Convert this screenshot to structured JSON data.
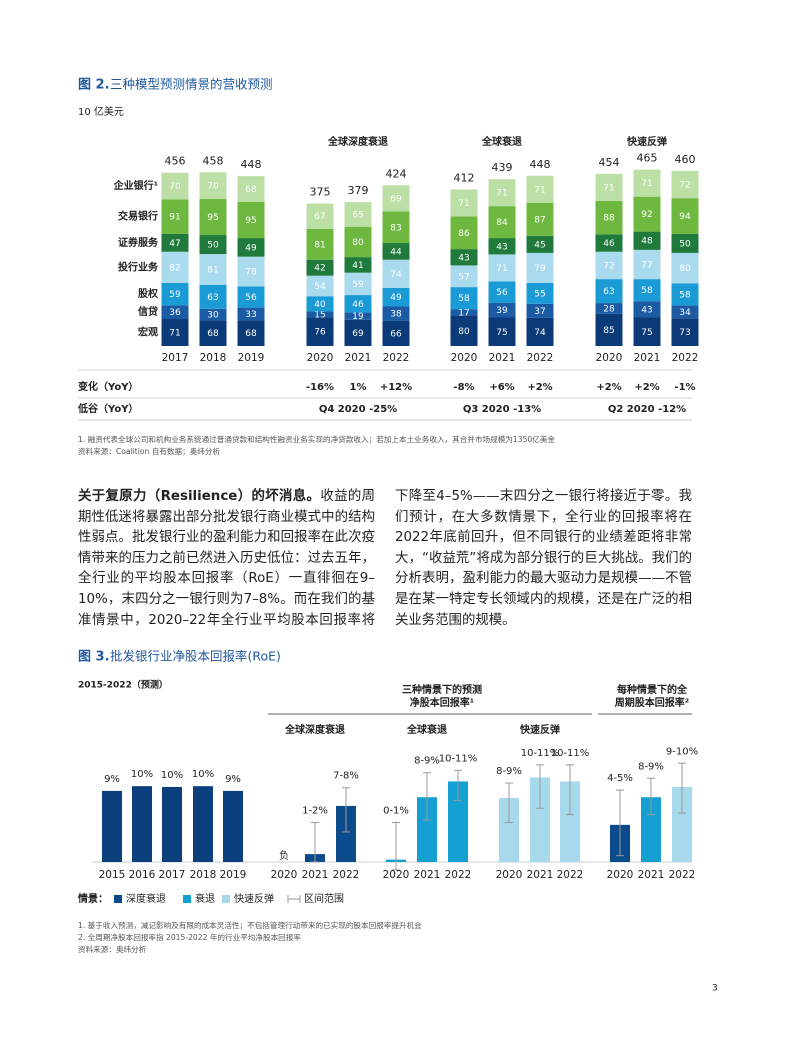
{
  "chart_data": [
    {
      "type": "stacked_bar",
      "figure_label": "图 2.",
      "title": "三种模型预测情景的营收预测",
      "unit": "10 亿美元",
      "categories": [
        "2017",
        "2018",
        "2019",
        "2020",
        "2021",
        "2022",
        "2020",
        "2021",
        "2022",
        "2020",
        "2021",
        "2022"
      ],
      "group_labels": [
        "全球深度衰退",
        "全球衰退",
        "快速反弹"
      ],
      "totals": [
        456,
        458,
        448,
        375,
        379,
        424,
        412,
        439,
        448,
        454,
        465,
        460
      ],
      "series": [
        {
          "name": "宏观",
          "color": "#0b3a78",
          "values": [
            71,
            68,
            68,
            76,
            69,
            66,
            80,
            75,
            74,
            85,
            75,
            73
          ]
        },
        {
          "name": "信贷",
          "color": "#1b5ba3",
          "values": [
            36,
            30,
            33,
            15,
            19,
            38,
            17,
            39,
            37,
            28,
            43,
            34
          ]
        },
        {
          "name": "股权",
          "color": "#1a9bd6",
          "values": [
            59,
            63,
            56,
            40,
            46,
            49,
            58,
            56,
            55,
            63,
            58,
            58
          ]
        },
        {
          "name": "投行业务",
          "color": "#a9daee",
          "values": [
            82,
            81,
            78,
            54,
            59,
            74,
            57,
            71,
            79,
            72,
            77,
            80
          ]
        },
        {
          "name": "证券服务",
          "color": "#1f7a3c",
          "values": [
            47,
            50,
            49,
            42,
            41,
            44,
            43,
            43,
            45,
            46,
            48,
            50
          ]
        },
        {
          "name": "交易银行",
          "color": "#6fb83f",
          "values": [
            91,
            95,
            95,
            81,
            80,
            83,
            86,
            84,
            87,
            88,
            92,
            94
          ]
        },
        {
          "name": "企业银行¹",
          "color": "#bcdfa6",
          "values": [
            70,
            70,
            68,
            67,
            65,
            69,
            71,
            71,
            71,
            71,
            71,
            72
          ]
        }
      ],
      "change_row": {
        "label": "变化（YoY）",
        "values": [
          null,
          null,
          null,
          "-16%",
          "1%",
          "+12%",
          "-8%",
          "+6%",
          "+2%",
          "+2%",
          "+2%",
          "-1%"
        ]
      },
      "trough_row": {
        "label": "低谷（YoY）",
        "values": [
          "Q4 2020 -25%",
          "Q3 2020 -13%",
          "Q2 2020 -12%"
        ]
      },
      "footnotes": [
        "1. 融资代表全球公司和机构业务系统通过普通贷款和结构性融资业务实现的净贷款收入；若加上本土业务收入，其合并市场规模为1350亿美金",
        "资料来源：Coalition 自有数据；奥纬分析"
      ]
    },
    {
      "type": "bar",
      "figure_label": "图 3.",
      "title": "批发银行业净股本回报率(RoE)",
      "subtitle": "2015-2022（预测）",
      "categories": [
        "2015",
        "2016",
        "2017",
        "2018",
        "2019",
        "2020",
        "2021",
        "2022",
        "2020",
        "2021",
        "2022",
        "2020",
        "2021",
        "2022",
        "2020",
        "2021",
        "2022"
      ],
      "values": [
        9.0,
        9.6,
        9.5,
        9.6,
        9.0,
        null,
        1.0,
        7.1,
        0.3,
        8.2,
        10.2,
        8.1,
        10.7,
        10.2,
        4.7,
        8.2,
        9.5
      ],
      "value_labels": [
        "9%",
        "10%",
        "10%",
        "10%",
        "9%",
        "负",
        "1-2%",
        "7-8%",
        "0-1%",
        "8-9%",
        "10-11%",
        "8-9%",
        "10-11%",
        "10-11%",
        "4-5%",
        "8-9%",
        "9-10%"
      ],
      "ranges": [
        null,
        null,
        null,
        null,
        null,
        null,
        [
          0,
          5
        ],
        [
          3.8,
          9.4
        ],
        [
          -1,
          5
        ],
        [
          5.3,
          11.3
        ],
        [
          7.8,
          11.6
        ],
        [
          5,
          10
        ],
        [
          6.8,
          12.3
        ],
        [
          6,
          12.3
        ],
        [
          0.8,
          9.1
        ],
        [
          6,
          10.6
        ],
        [
          6.2,
          12.5
        ]
      ],
      "colors": [
        "#0b3f7e",
        "#0b3f7e",
        "#0b3f7e",
        "#0b3f7e",
        "#0b3f7e",
        "#0b4a8b",
        "#0b4a8b",
        "#0b4a8b",
        "#14a0d2",
        "#14a0d2",
        "#14a0d2",
        "#a6d9ec",
        "#a6d9ec",
        "#a6d9ec",
        "#0b4a8b",
        "#14a0d2",
        "#a6d9ec"
      ],
      "group_headers": [
        [
          "三种情景下的预测",
          "净股本回报率¹"
        ],
        [
          "每种情景下的全",
          "周期股本回报率²"
        ]
      ],
      "scenario_labels": [
        "全球深度衰退",
        "全球衰退",
        "快速反弹"
      ],
      "legend": {
        "title": "情景：",
        "items": [
          {
            "name": "深度衰退",
            "color": "#0b4a8b"
          },
          {
            "name": "衰退",
            "color": "#14a0d2"
          },
          {
            "name": "快速反弹",
            "color": "#a6d9ec"
          }
        ],
        "range_label": "区间范围"
      },
      "footnotes": [
        "1. 基于收入预测，减记影响及有限的成本灵活性；不包括管理行动带来的已实现的股本回报率提升机会",
        "2. 全周期净股本回报率指 2015-2022 年的行业平均净股本回报率",
        "资料来源：奥纬分析"
      ]
    }
  ],
  "body": {
    "lead": "关于复原力（Resilience）的坏消息。",
    "text": "收益的周期性低迷将暴露出部分批发银行商业模式中的结构性弱点。批发银行业的盈利能力和回报率在此次疫情带来的压力之前已然进入历史低位：过去五年，全行业的平均股本回报率（RoE）一直徘徊在9–10%，末四分之一银行则为7–8%。而在我们的基准情景中，2020–22年全行业平均股本回报率将下降至4–5%——末四分之一银行将接近于零。我们预计，在大多数情景下，全行业的回报率将在2022年底前回升，但不同银行的业绩差距将非常大，“收益荒”将成为部分银行的巨大挑战。我们的分析表明，盈利能力的最大驱动力是规模——不管是在某一特定专长领域内的规模，还是在广泛的相关业务范围的规模。"
  },
  "page_number": "3"
}
